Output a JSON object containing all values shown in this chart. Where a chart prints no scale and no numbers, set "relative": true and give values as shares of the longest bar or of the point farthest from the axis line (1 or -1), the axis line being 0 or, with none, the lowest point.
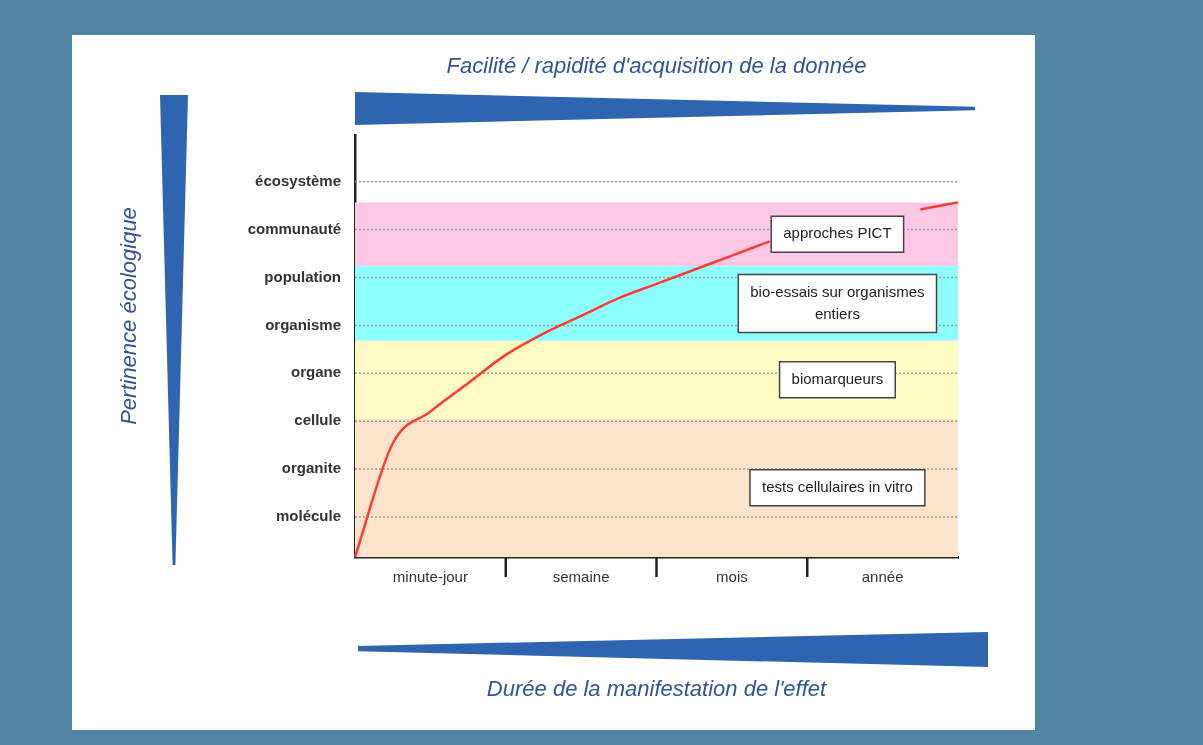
{
  "chart_data": {
    "type": "line",
    "title": "Facilité / rapidité d'acquisition de la donnée",
    "xlabel": "Durée de la manifestation de l'effet",
    "relative": true,
    "categories": [
      null,
      null,
      "minute-jour",
      null,
      null,
      null,
      "semaine",
      null,
      null,
      null,
      "mois",
      null,
      null,
      null,
      "année",
      null,
      null
    ],
    "grid": "y",
    "marker": "none",
    "series": [
      {
        "color": "#ff3b30",
        "values": [
          0,
          0.32,
          0.41,
          0.49,
          0.57,
          0.63,
          0.68,
          0.73,
          0.77,
          0.81,
          0.85,
          0.89,
          null,
          null,
          null,
          0.98,
          1
        ]
      }
    ],
    "bands": [
      {
        "axis": "y",
        "from": 0.82,
        "to": 1,
        "label": "approches PICT",
        "color": "#fcc8e6"
      },
      {
        "axis": "y",
        "from": 0.61,
        "to": 0.82,
        "label": "bio-essais sur organismes entiers",
        "color": "#8effff"
      },
      {
        "axis": "y",
        "from": 0.39,
        "to": 0.61,
        "label": "biomarqueurs",
        "color": "#fffbc4"
      },
      {
        "axis": "y",
        "from": 0,
        "to": 0.39,
        "label": "tests cellulaires in vitro",
        "color": "#fde2cc"
      }
    ],
    "annotations": [
      "molécule",
      "organite",
      "cellule",
      "organe",
      "organisme",
      "population",
      "communauté",
      "écosystème",
      "Pertinence écologique"
    ]
  }
}
